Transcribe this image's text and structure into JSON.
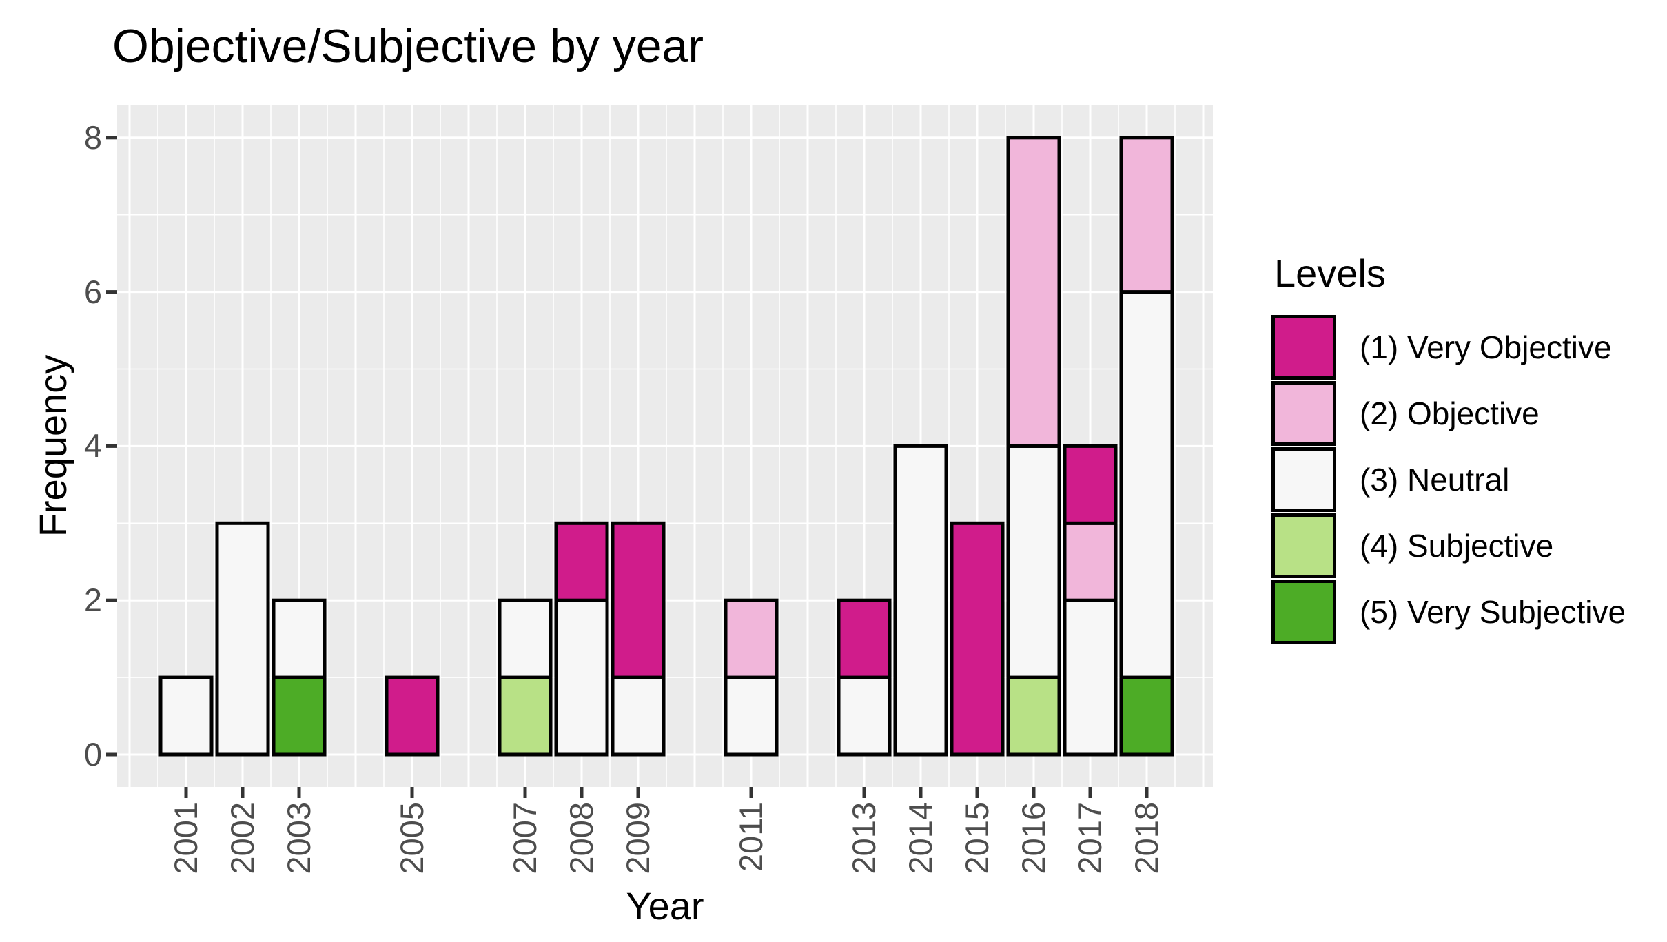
{
  "chart_data": {
    "type": "bar",
    "stacked": true,
    "stack_order": "bottom_to_top",
    "title": "Objective/Subjective by year",
    "xlabel": "Year",
    "ylabel": "Frequency",
    "categories": [
      "2001",
      "2002",
      "2003",
      "2005",
      "2007",
      "2008",
      "2009",
      "2011",
      "2013",
      "2014",
      "2015",
      "2016",
      "2017",
      "2018"
    ],
    "series": [
      {
        "name": "(5) Very Subjective",
        "color": "#4dac26",
        "values": [
          0,
          0,
          1,
          0,
          0,
          0,
          0,
          0,
          0,
          0,
          0,
          0,
          0,
          1
        ]
      },
      {
        "name": "(4) Subjective",
        "color": "#b8e186",
        "values": [
          0,
          0,
          0,
          0,
          1,
          0,
          0,
          0,
          0,
          0,
          0,
          1,
          0,
          0
        ]
      },
      {
        "name": "(3) Neutral",
        "color": "#f7f7f7",
        "values": [
          1,
          3,
          1,
          0,
          1,
          2,
          1,
          1,
          1,
          4,
          0,
          3,
          2,
          5
        ]
      },
      {
        "name": "(2) Objective",
        "color": "#f1b6da",
        "values": [
          0,
          0,
          0,
          0,
          0,
          0,
          0,
          1,
          0,
          0,
          0,
          4,
          1,
          2
        ]
      },
      {
        "name": "(1) Very Objective",
        "color": "#d01c8b",
        "values": [
          0,
          0,
          0,
          1,
          0,
          1,
          2,
          0,
          1,
          0,
          3,
          0,
          1,
          0
        ]
      }
    ],
    "totals": [
      1,
      3,
      2,
      1,
      2,
      3,
      3,
      2,
      2,
      4,
      3,
      8,
      4,
      8
    ],
    "y_ticks": [
      "0",
      "2",
      "4",
      "6",
      "8"
    ],
    "ylim": [
      0,
      8
    ],
    "grid": true,
    "panel_background": "#ebebeb",
    "gridline_color": "#ffffff",
    "bar_outline_color": "#000000",
    "tick_mark_color": "#333333",
    "tick_label_color": "#4d4d4d",
    "legend": {
      "title": "Levels",
      "position": "right",
      "items": [
        {
          "label": "(1) Very Objective",
          "color": "#d01c8b"
        },
        {
          "label": "(2) Objective",
          "color": "#f1b6da"
        },
        {
          "label": "(3) Neutral",
          "color": "#f7f7f7"
        },
        {
          "label": "(4) Subjective",
          "color": "#b8e186"
        },
        {
          "label": "(5) Very Subjective",
          "color": "#4dac26"
        }
      ]
    }
  }
}
